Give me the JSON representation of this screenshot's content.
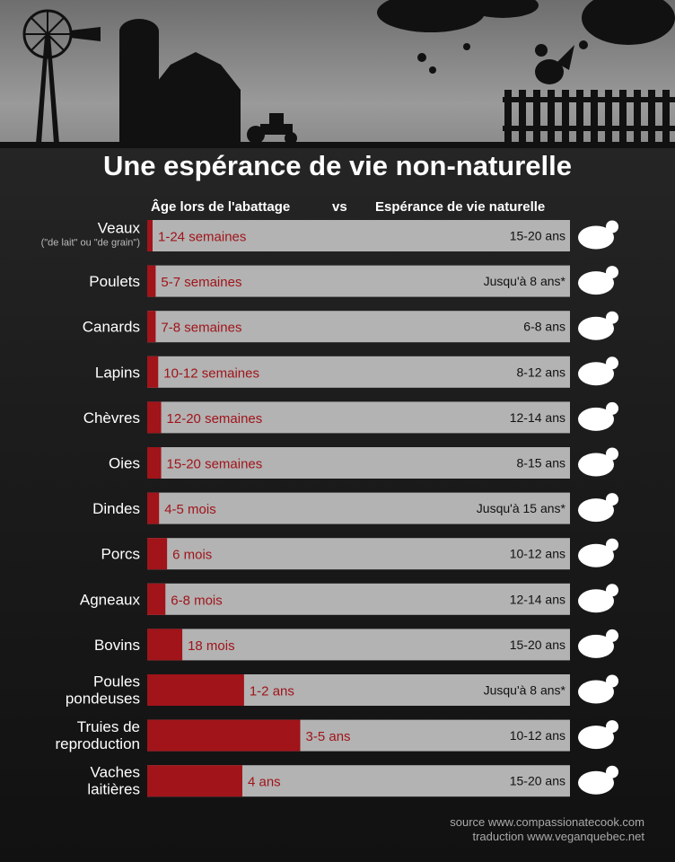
{
  "title": "Une espérance de vie non-naturelle",
  "columns": {
    "left": "Âge lors de l'abattage",
    "vs": "vs",
    "right": "Espérance de vie naturelle"
  },
  "chart_data": {
    "type": "bar",
    "categories": [
      "Veaux",
      "Poulets",
      "Canards",
      "Lapins",
      "Chèvres",
      "Oies",
      "Dindes",
      "Porcs",
      "Agneaux",
      "Bovins",
      "Poules pondeuses",
      "Truies de reproduction",
      "Vaches laitières"
    ],
    "subtitles": {
      "Veaux": "(\"de lait\" ou \"de grain\")"
    },
    "slaughter_labels": [
      "1-24 semaines",
      "5-7 semaines",
      "7-8 semaines",
      "10-12 semaines",
      "12-20 semaines",
      "15-20 semaines",
      "4-5 mois",
      "6 mois",
      "6-8 mois",
      "18 mois",
      "1-2 ans",
      "3-5 ans",
      "4 ans"
    ],
    "natural_labels": [
      "15-20 ans",
      "Jusqu'à 8 ans*",
      "6-8 ans",
      "8-12 ans",
      "12-14 ans",
      "8-15 ans",
      "Jusqu'à 15 ans*",
      "10-12 ans",
      "12-14 ans",
      "15-20 ans",
      "Jusqu'à 8 ans*",
      "10-12 ans",
      "15-20 ans"
    ],
    "fill_fraction": [
      0.011,
      0.02,
      0.02,
      0.026,
      0.033,
      0.033,
      0.028,
      0.047,
      0.043,
      0.083,
      0.229,
      0.362,
      0.225
    ]
  },
  "colors": {
    "slaughter": "#a0141a",
    "natural": "#b3b3b3"
  },
  "icons": [
    "calf-icon",
    "chicken-icon",
    "duck-icon",
    "rabbit-icon",
    "goat-icon",
    "goose-icon",
    "turkey-icon",
    "pig-icon",
    "lamb-icon",
    "bull-icon",
    "hen-icon",
    "sow-icon",
    "cow-icon"
  ],
  "source": {
    "line1": "source www.compassionatecook.com",
    "line2": "traduction www.veganquebec.net"
  }
}
